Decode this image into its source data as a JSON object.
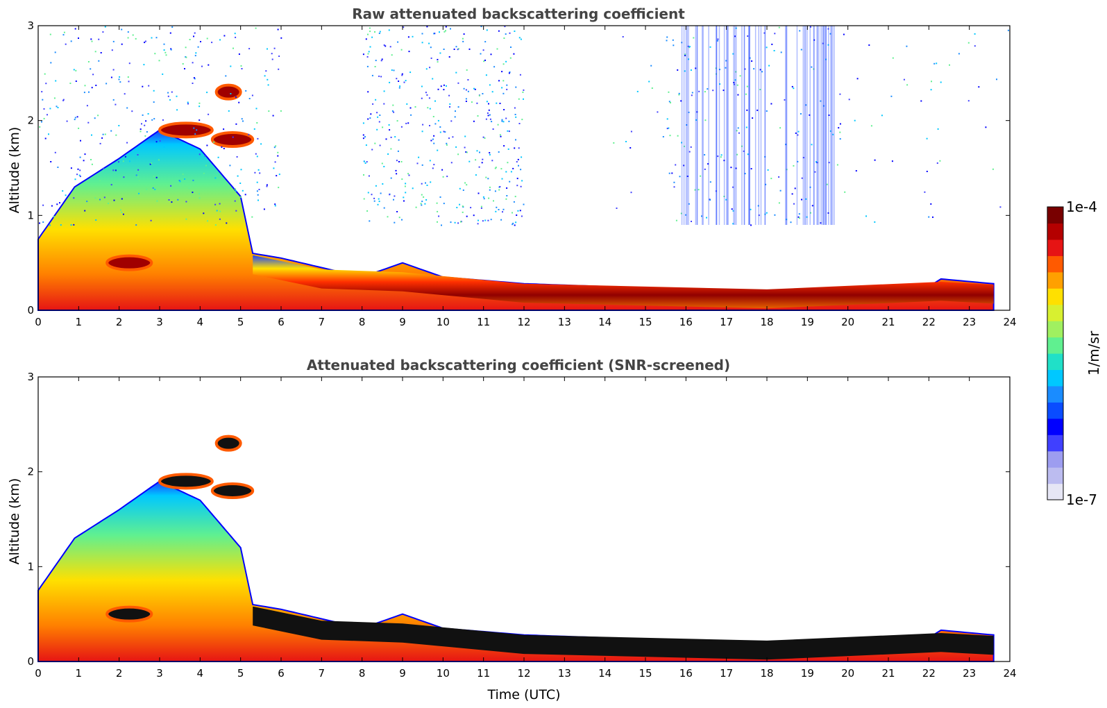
{
  "chart_data": [
    {
      "type": "heatmap",
      "title": "Raw attenuated backscattering coefficient",
      "xlabel": "",
      "ylabel": "Altitude (km)",
      "xlim": [
        0,
        24
      ],
      "ylim": [
        0,
        3
      ],
      "xticks": [
        "0",
        "1",
        "2",
        "3",
        "4",
        "5",
        "6",
        "7",
        "8",
        "9",
        "10",
        "11",
        "12",
        "13",
        "14",
        "15",
        "16",
        "17",
        "18",
        "19",
        "20",
        "21",
        "22",
        "23",
        "24"
      ],
      "yticks": [
        "0",
        "1",
        "2",
        "3"
      ],
      "data_end_time": 23.6,
      "boundary_layer_top_km": [
        {
          "t": 0,
          "z": 0.75
        },
        {
          "t": 0.9,
          "z": 1.3
        },
        {
          "t": 2,
          "z": 1.6
        },
        {
          "t": 3,
          "z": 1.9
        },
        {
          "t": 4,
          "z": 1.7
        },
        {
          "t": 5,
          "z": 1.2
        },
        {
          "t": 5.3,
          "z": 0.6
        },
        {
          "t": 6,
          "z": 0.55
        },
        {
          "t": 8,
          "z": 0.35
        },
        {
          "t": 9,
          "z": 0.5
        },
        {
          "t": 10,
          "z": 0.35
        },
        {
          "t": 12,
          "z": 0.28
        },
        {
          "t": 16,
          "z": 0.22
        },
        {
          "t": 19,
          "z": 0.2
        },
        {
          "t": 22,
          "z": 0.25
        },
        {
          "t": 22.3,
          "z": 0.33
        },
        {
          "t": 23.6,
          "z": 0.28
        }
      ],
      "dense_aerosol_layer_km": [
        {
          "t": 5.3,
          "z": 0.48
        },
        {
          "t": 7,
          "z": 0.33
        },
        {
          "t": 9,
          "z": 0.3
        },
        {
          "t": 12,
          "z": 0.18
        },
        {
          "t": 18,
          "z": 0.12
        },
        {
          "t": 22.3,
          "z": 0.2
        },
        {
          "t": 23.6,
          "z": 0.17
        }
      ],
      "clouds": [
        {
          "t_start": 3.0,
          "t_end": 4.3,
          "z_km": 1.9
        },
        {
          "t_start": 4.3,
          "t_end": 5.3,
          "z_km": 1.8
        },
        {
          "t_start": 4.4,
          "t_end": 5.0,
          "z_km": 2.3
        },
        {
          "t_start": 1.7,
          "t_end": 2.8,
          "z_km": 0.5
        }
      ]
    },
    {
      "type": "heatmap",
      "title": "Attenuated backscattering coefficient (SNR-screened)",
      "xlabel": "Time (UTC)",
      "ylabel": "Altitude (km)",
      "xlim": [
        0,
        24
      ],
      "ylim": [
        0,
        3
      ],
      "xticks": [
        "0",
        "1",
        "2",
        "3",
        "4",
        "5",
        "6",
        "7",
        "8",
        "9",
        "10",
        "11",
        "12",
        "13",
        "14",
        "15",
        "16",
        "17",
        "18",
        "19",
        "20",
        "21",
        "22",
        "23",
        "24"
      ],
      "yticks": [
        "0",
        "1",
        "2",
        "3"
      ],
      "screening": "SNR"
    }
  ],
  "colorbar": {
    "max_label": "1e-4",
    "min_label": "1e-7",
    "unit_label": "1/m/sr",
    "colors": [
      "#e6e6f5",
      "#bcbcf0",
      "#9d9df0",
      "#4040ff",
      "#0000ff",
      "#0a4cff",
      "#1a8cff",
      "#00c8ff",
      "#20e0c8",
      "#60f090",
      "#a0f060",
      "#d8f030",
      "#ffe000",
      "#ffa000",
      "#ff5a00",
      "#e61414",
      "#b40000",
      "#780000"
    ]
  }
}
